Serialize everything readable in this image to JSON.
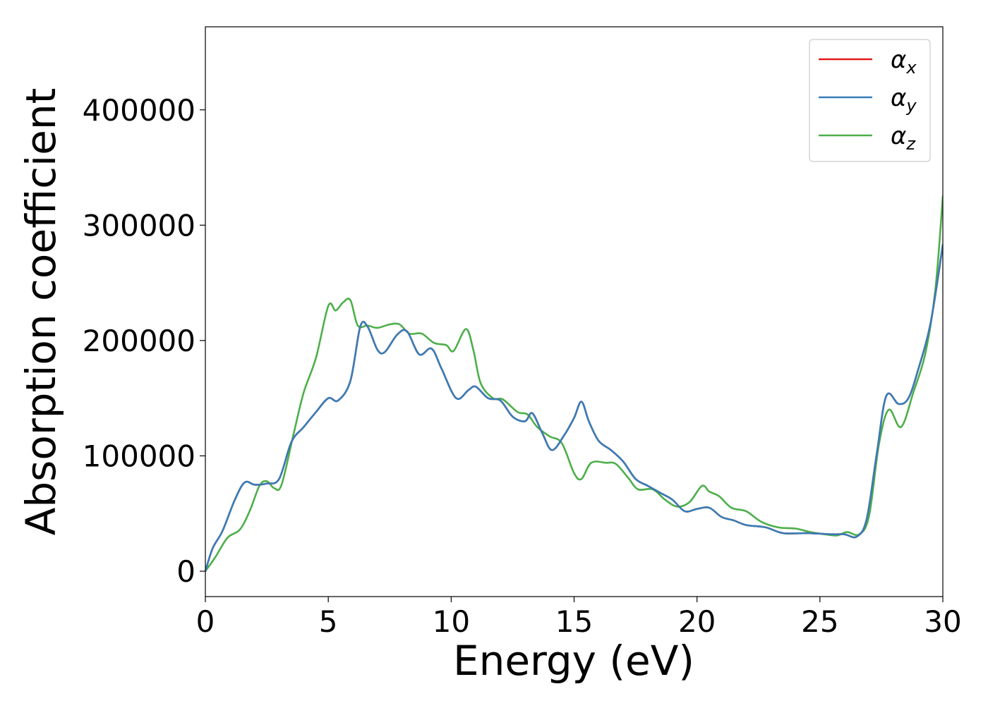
{
  "chart_data": {
    "type": "line",
    "xlabel": "Energy (eV)",
    "ylabel": "Absorption coefficient",
    "xlim": [
      0,
      30
    ],
    "ylim": [
      -22000,
      472000
    ],
    "x_ticks": [
      0,
      5,
      10,
      15,
      20,
      25,
      30
    ],
    "y_ticks": [
      0,
      100000,
      200000,
      300000,
      400000
    ],
    "grid": false,
    "legend_position": "top-right",
    "series": [
      {
        "name": "αx",
        "legend_base": "α",
        "legend_sub": "x",
        "color": "#e41a1c",
        "points": [
          [
            0,
            0
          ],
          [
            0.3,
            20000
          ],
          [
            0.7,
            35000
          ],
          [
            1.2,
            62000
          ],
          [
            1.6,
            77000
          ],
          [
            2.0,
            75000
          ],
          [
            2.5,
            76000
          ],
          [
            3.0,
            80000
          ],
          [
            3.5,
            112000
          ],
          [
            4.0,
            125000
          ],
          [
            4.5,
            138000
          ],
          [
            5.0,
            150000
          ],
          [
            5.4,
            148000
          ],
          [
            5.9,
            165000
          ],
          [
            6.3,
            212000
          ],
          [
            6.6,
            212000
          ],
          [
            7.0,
            192000
          ],
          [
            7.3,
            190000
          ],
          [
            7.8,
            205000
          ],
          [
            8.2,
            208000
          ],
          [
            8.7,
            188000
          ],
          [
            9.2,
            193000
          ],
          [
            9.6,
            176000
          ],
          [
            10.2,
            150000
          ],
          [
            10.7,
            157000
          ],
          [
            11.0,
            160000
          ],
          [
            11.5,
            150000
          ],
          [
            12.0,
            148000
          ],
          [
            12.5,
            134000
          ],
          [
            13.0,
            130000
          ],
          [
            13.3,
            137000
          ],
          [
            13.7,
            120000
          ],
          [
            14.1,
            105000
          ],
          [
            14.6,
            118000
          ],
          [
            15.0,
            133000
          ],
          [
            15.3,
            147000
          ],
          [
            15.6,
            130000
          ],
          [
            16.0,
            113000
          ],
          [
            16.5,
            105000
          ],
          [
            17.0,
            95000
          ],
          [
            17.5,
            80000
          ],
          [
            18.0,
            74000
          ],
          [
            18.5,
            68000
          ],
          [
            19.0,
            62000
          ],
          [
            19.5,
            52000
          ],
          [
            20.0,
            54000
          ],
          [
            20.5,
            55000
          ],
          [
            21.0,
            47000
          ],
          [
            21.5,
            44000
          ],
          [
            22.0,
            40000
          ],
          [
            22.8,
            38000
          ],
          [
            23.5,
            33000
          ],
          [
            24.5,
            33000
          ],
          [
            25.5,
            32000
          ],
          [
            26.0,
            32000
          ],
          [
            26.5,
            30000
          ],
          [
            26.9,
            45000
          ],
          [
            27.3,
            100000
          ],
          [
            27.7,
            152000
          ],
          [
            28.2,
            145000
          ],
          [
            28.6,
            150000
          ],
          [
            29.0,
            175000
          ],
          [
            29.5,
            215000
          ],
          [
            30,
            283000
          ]
        ]
      },
      {
        "name": "αy",
        "legend_base": "α",
        "legend_sub": "y",
        "color": "#377eb8",
        "points": [
          [
            0,
            0
          ],
          [
            0.3,
            20000
          ],
          [
            0.7,
            35000
          ],
          [
            1.2,
            62000
          ],
          [
            1.6,
            77000
          ],
          [
            2.0,
            75000
          ],
          [
            2.5,
            76000
          ],
          [
            3.0,
            80000
          ],
          [
            3.5,
            112000
          ],
          [
            4.0,
            125000
          ],
          [
            4.5,
            138000
          ],
          [
            5.0,
            150000
          ],
          [
            5.4,
            148000
          ],
          [
            5.9,
            165000
          ],
          [
            6.3,
            212000
          ],
          [
            6.6,
            212000
          ],
          [
            7.0,
            192000
          ],
          [
            7.3,
            190000
          ],
          [
            7.8,
            205000
          ],
          [
            8.2,
            208000
          ],
          [
            8.7,
            188000
          ],
          [
            9.2,
            193000
          ],
          [
            9.6,
            176000
          ],
          [
            10.2,
            150000
          ],
          [
            10.7,
            157000
          ],
          [
            11.0,
            160000
          ],
          [
            11.5,
            150000
          ],
          [
            12.0,
            148000
          ],
          [
            12.5,
            134000
          ],
          [
            13.0,
            130000
          ],
          [
            13.3,
            137000
          ],
          [
            13.7,
            120000
          ],
          [
            14.1,
            105000
          ],
          [
            14.6,
            118000
          ],
          [
            15.0,
            133000
          ],
          [
            15.3,
            147000
          ],
          [
            15.6,
            130000
          ],
          [
            16.0,
            113000
          ],
          [
            16.5,
            105000
          ],
          [
            17.0,
            95000
          ],
          [
            17.5,
            80000
          ],
          [
            18.0,
            74000
          ],
          [
            18.5,
            68000
          ],
          [
            19.0,
            62000
          ],
          [
            19.5,
            52000
          ],
          [
            20.0,
            54000
          ],
          [
            20.5,
            55000
          ],
          [
            21.0,
            47000
          ],
          [
            21.5,
            44000
          ],
          [
            22.0,
            40000
          ],
          [
            22.8,
            38000
          ],
          [
            23.5,
            33000
          ],
          [
            24.5,
            33000
          ],
          [
            25.5,
            32000
          ],
          [
            26.0,
            32000
          ],
          [
            26.5,
            30000
          ],
          [
            26.9,
            45000
          ],
          [
            27.3,
            100000
          ],
          [
            27.7,
            152000
          ],
          [
            28.2,
            145000
          ],
          [
            28.6,
            150000
          ],
          [
            29.0,
            175000
          ],
          [
            29.5,
            215000
          ],
          [
            30,
            283000
          ]
        ]
      },
      {
        "name": "αz",
        "legend_base": "α",
        "legend_sub": "z",
        "color": "#4daf4a",
        "points": [
          [
            0,
            0
          ],
          [
            0.4,
            12000
          ],
          [
            0.9,
            29000
          ],
          [
            1.4,
            36000
          ],
          [
            1.8,
            52000
          ],
          [
            2.2,
            74000
          ],
          [
            2.5,
            78000
          ],
          [
            2.8,
            72000
          ],
          [
            3.1,
            75000
          ],
          [
            3.6,
            120000
          ],
          [
            4.0,
            155000
          ],
          [
            4.5,
            185000
          ],
          [
            5.0,
            230000
          ],
          [
            5.3,
            226000
          ],
          [
            5.6,
            233000
          ],
          [
            5.9,
            235000
          ],
          [
            6.2,
            213000
          ],
          [
            6.6,
            213000
          ],
          [
            7.0,
            211000
          ],
          [
            7.5,
            214000
          ],
          [
            7.9,
            214000
          ],
          [
            8.3,
            206000
          ],
          [
            8.8,
            206000
          ],
          [
            9.3,
            198000
          ],
          [
            9.8,
            196000
          ],
          [
            10.1,
            191000
          ],
          [
            10.6,
            210000
          ],
          [
            10.9,
            192000
          ],
          [
            11.2,
            163000
          ],
          [
            11.7,
            150000
          ],
          [
            12.1,
            149000
          ],
          [
            12.7,
            138000
          ],
          [
            13.1,
            136000
          ],
          [
            13.5,
            125000
          ],
          [
            14.0,
            117000
          ],
          [
            14.5,
            111000
          ],
          [
            15.0,
            85000
          ],
          [
            15.3,
            80000
          ],
          [
            15.7,
            94000
          ],
          [
            16.3,
            94000
          ],
          [
            16.7,
            93000
          ],
          [
            17.2,
            81000
          ],
          [
            17.6,
            71000
          ],
          [
            18.2,
            71000
          ],
          [
            18.7,
            62000
          ],
          [
            19.2,
            56000
          ],
          [
            19.7,
            60000
          ],
          [
            20.2,
            74000
          ],
          [
            20.5,
            69000
          ],
          [
            20.9,
            65000
          ],
          [
            21.4,
            55000
          ],
          [
            22.0,
            52000
          ],
          [
            22.6,
            43000
          ],
          [
            23.3,
            38000
          ],
          [
            24.0,
            37000
          ],
          [
            24.6,
            34000
          ],
          [
            25.2,
            32000
          ],
          [
            25.7,
            31000
          ],
          [
            26.1,
            34000
          ],
          [
            26.6,
            32000
          ],
          [
            27.0,
            48000
          ],
          [
            27.4,
            110000
          ],
          [
            27.8,
            140000
          ],
          [
            28.3,
            125000
          ],
          [
            28.8,
            155000
          ],
          [
            29.3,
            190000
          ],
          [
            29.7,
            245000
          ],
          [
            30,
            325000
          ]
        ]
      }
    ]
  }
}
